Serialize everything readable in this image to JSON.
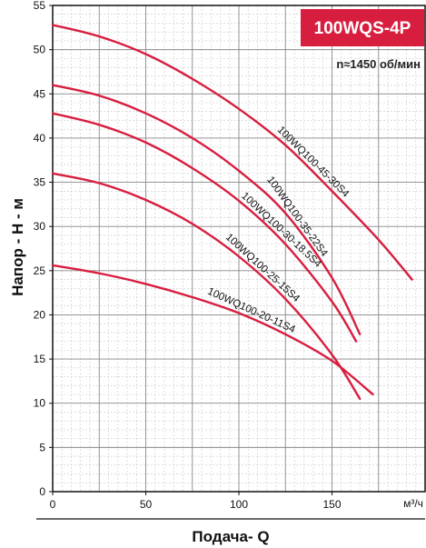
{
  "chart_data": {
    "type": "line",
    "title": "100WQS-4P",
    "subtitle": "n≈1450 об/мин",
    "xlabel": "Подача- Q",
    "ylabel": "Напор - Н - м",
    "x_unit": "м³/ч",
    "xlim": [
      0,
      200
    ],
    "ylim": [
      0,
      55
    ],
    "x_ticks": [
      0,
      50,
      100,
      150
    ],
    "y_ticks": [
      0,
      5,
      10,
      15,
      20,
      25,
      30,
      35,
      40,
      45,
      50,
      55
    ],
    "grid": true,
    "accent_color": "#d81e3f",
    "series": [
      {
        "name": "100WQ100-45-30S4",
        "x": [
          0,
          25,
          50,
          75,
          100,
          125,
          150,
          175,
          193
        ],
        "y": [
          52.8,
          51.5,
          49.5,
          46.7,
          43.3,
          39.2,
          34.0,
          28.5,
          24.0
        ]
      },
      {
        "name": "100WQ100-35-22S4",
        "x": [
          0,
          25,
          50,
          75,
          100,
          125,
          150,
          165
        ],
        "y": [
          46.0,
          44.8,
          42.8,
          40.0,
          36.3,
          31.5,
          24.2,
          17.8
        ]
      },
      {
        "name": "100WQ100-30-18.5S4",
        "x": [
          0,
          25,
          50,
          75,
          100,
          125,
          150,
          163
        ],
        "y": [
          42.8,
          41.5,
          39.5,
          36.6,
          32.9,
          28.0,
          21.5,
          17.0
        ]
      },
      {
        "name": "100WQ100-25-15S4",
        "x": [
          0,
          25,
          50,
          75,
          100,
          125,
          150,
          165
        ],
        "y": [
          36.0,
          34.9,
          33.0,
          30.3,
          26.6,
          21.8,
          15.5,
          10.5
        ]
      },
      {
        "name": "100WQ100-20-11S4",
        "x": [
          0,
          25,
          50,
          75,
          100,
          125,
          150,
          172
        ],
        "y": [
          25.6,
          24.7,
          23.5,
          22.0,
          20.2,
          17.8,
          14.8,
          11.0
        ]
      }
    ]
  }
}
